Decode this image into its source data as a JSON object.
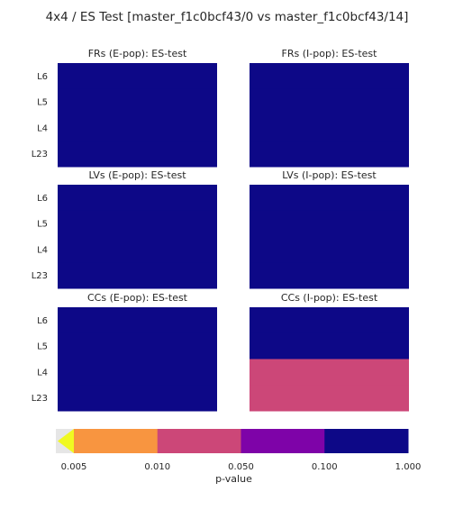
{
  "figure": {
    "title": "4x4 / ES Test [master_f1c0bcf43/0 vs master_f1c0bcf43/14]"
  },
  "colors": {
    "p_lt_0_005": "#f0f921",
    "p_0_005_0_01": "#f89540",
    "p_0_01_0_05": "#cc4778",
    "p_0_05_0_1": "#7e03a8",
    "p_0_1_1": "#0d0887",
    "below_min": "#e6e6e6"
  },
  "chart_data": [
    {
      "type": "heatmap",
      "title": "FRs (E-pop): ES-test",
      "rows": [
        "L6",
        "L5",
        "L4",
        "L23"
      ],
      "pvalue_bin": [
        "0.100–1.000",
        "0.100–1.000",
        "0.100–1.000",
        "0.100–1.000"
      ]
    },
    {
      "type": "heatmap",
      "title": "FRs (I-pop): ES-test",
      "rows": [
        "L6",
        "L5",
        "L4",
        "L23"
      ],
      "pvalue_bin": [
        "0.100–1.000",
        "0.100–1.000",
        "0.100–1.000",
        "0.100–1.000"
      ]
    },
    {
      "type": "heatmap",
      "title": "LVs (E-pop): ES-test",
      "rows": [
        "L6",
        "L5",
        "L4",
        "L23"
      ],
      "pvalue_bin": [
        "0.100–1.000",
        "0.100–1.000",
        "0.100–1.000",
        "0.100–1.000"
      ]
    },
    {
      "type": "heatmap",
      "title": "LVs (I-pop): ES-test",
      "rows": [
        "L6",
        "L5",
        "L4",
        "L23"
      ],
      "pvalue_bin": [
        "0.100–1.000",
        "0.100–1.000",
        "0.100–1.000",
        "0.100–1.000"
      ]
    },
    {
      "type": "heatmap",
      "title": "CCs (E-pop): ES-test",
      "rows": [
        "L6",
        "L5",
        "L4",
        "L23"
      ],
      "pvalue_bin": [
        "0.100–1.000",
        "0.100–1.000",
        "0.100–1.000",
        "0.100–1.000"
      ]
    },
    {
      "type": "heatmap",
      "title": "CCs (I-pop): ES-test",
      "rows": [
        "L6",
        "L5",
        "L4",
        "L23"
      ],
      "pvalue_bin": [
        "0.100–1.000",
        "0.100–1.000",
        "0.010–0.050",
        "0.010–0.050"
      ]
    }
  ],
  "colorbar": {
    "label": "p-value",
    "ticks": [
      "0.005",
      "0.010",
      "0.050",
      "0.100",
      "1.000"
    ],
    "bins": [
      {
        "range": "0.005–0.010",
        "color": "#f89540"
      },
      {
        "range": "0.010–0.050",
        "color": "#cc4778"
      },
      {
        "range": "0.050–0.100",
        "color": "#7e03a8"
      },
      {
        "range": "0.100–1.000",
        "color": "#0d0887"
      }
    ],
    "extend_min_color": "#f0f921"
  }
}
